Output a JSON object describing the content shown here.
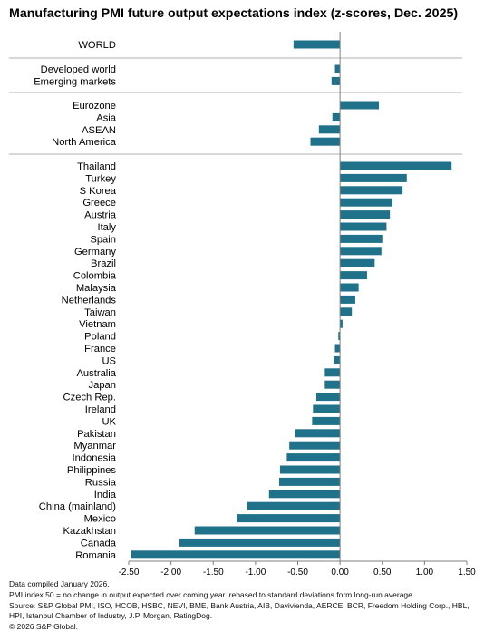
{
  "chart_data": {
    "type": "bar",
    "orientation": "horizontal",
    "title": "Manufacturing PMI future output expectations index (z-scores, Dec. 2025)",
    "xlim": [
      -2.5,
      1.5
    ],
    "xticks": [
      -2.5,
      -2.0,
      -1.5,
      -1.0,
      -0.5,
      0.0,
      0.5,
      1.0,
      1.5
    ],
    "xtick_labels": [
      "-2.50",
      "-2.00",
      "-1.50",
      "-1.00",
      "-0.50",
      "0.00",
      "0.50",
      "1.00",
      "1.50"
    ],
    "bar_color": "#1f7289",
    "groups": [
      {
        "categories": [
          "WORLD"
        ],
        "values": [
          -0.55
        ]
      },
      {
        "categories": [
          "Developed world",
          "Emerging markets"
        ],
        "values": [
          -0.06,
          -0.1
        ]
      },
      {
        "categories": [
          "Eurozone",
          "Asia",
          "ASEAN",
          "North America"
        ],
        "values": [
          0.46,
          -0.09,
          -0.25,
          -0.35
        ]
      },
      {
        "categories": [
          "Thailand",
          "Turkey",
          "S Korea",
          "Greece",
          "Austria",
          "Italy",
          "Spain",
          "Germany",
          "Brazil",
          "Colombia",
          "Malaysia",
          "Netherlands",
          "Taiwan",
          "Vietnam",
          "Poland",
          "France",
          "US",
          "Australia",
          "Japan",
          "Czech Rep.",
          "Ireland",
          "UK",
          "Pakistan",
          "Myanmar",
          "Indonesia",
          "Philippines",
          "Russia",
          "India",
          "China (mainland)",
          "Mexico",
          "Kazakhstan",
          "Canada",
          "Romania"
        ],
        "values": [
          1.32,
          0.79,
          0.74,
          0.62,
          0.59,
          0.55,
          0.5,
          0.49,
          0.41,
          0.32,
          0.22,
          0.18,
          0.14,
          0.03,
          -0.02,
          -0.06,
          -0.07,
          -0.18,
          -0.18,
          -0.28,
          -0.32,
          -0.33,
          -0.53,
          -0.6,
          -0.63,
          -0.71,
          -0.72,
          -0.84,
          -1.1,
          -1.22,
          -1.72,
          -1.9,
          -2.47
        ]
      }
    ]
  },
  "footnotes": {
    "compiled": "Data compiled January 2026.",
    "definition": "PMI index 50 = no change in output expected over coming year. rebased to standard deviations form long-run average",
    "source_line1": "Source: S&P Global PMI, ISO, HCOB, HSBC, NEVI, BME, Bank Austria, AIB, Davivienda, AERCE, BCR, Freedom Holding Corp., HBL,",
    "source_line2": "HPI, Istanbul Chamber of Industry, J.P. Morgan, RatingDog.",
    "copyright": "© 2026 S&P Global."
  }
}
